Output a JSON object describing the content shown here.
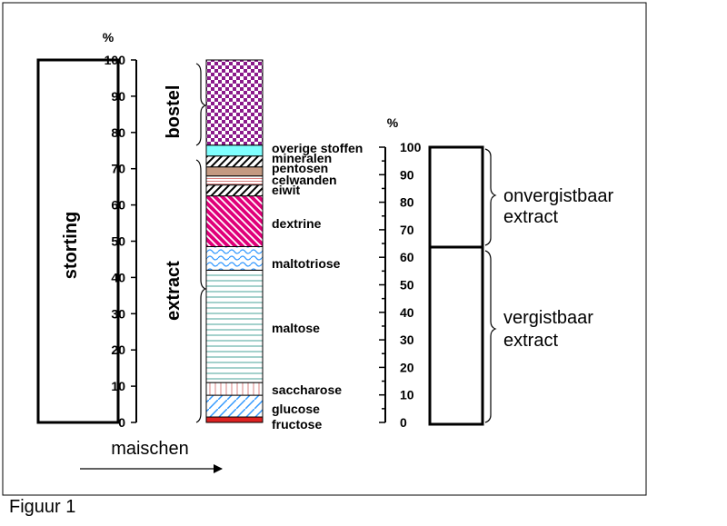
{
  "caption": "Figuur 1",
  "colors": {
    "bostel": "#8b1a8b",
    "overige_stoffen": "#7fffff",
    "pentosen": "#c49a82",
    "celwanden": "#e8d8d0",
    "dextrine": "#e0007a",
    "maltotriose": "#3399ff",
    "maltose": "#4aa39a",
    "saccharose": "#d9a0a0",
    "glucose": "#3399ff",
    "fructose": "#dd2222",
    "axis": "#000000"
  },
  "left_column": {
    "label": "storting"
  },
  "middle_axis": {
    "unit": "%",
    "ticks": [
      "0",
      "10",
      "20",
      "30",
      "40",
      "50",
      "60",
      "70",
      "80",
      "90",
      "100"
    ],
    "brace_labels": {
      "top": "bostel",
      "bottom": "extract"
    }
  },
  "maischen": {
    "label": "maischen"
  },
  "chart_data": {
    "type": "stacked-bar",
    "unit": "%",
    "ylim": [
      0,
      100
    ],
    "segments": [
      {
        "name": "fructose",
        "from": 0,
        "to": 1.5,
        "pattern": "solid-red"
      },
      {
        "name": "glucose",
        "from": 1.5,
        "to": 7.5,
        "pattern": "diagonal-blue"
      },
      {
        "name": "saccharose",
        "from": 7.5,
        "to": 11,
        "pattern": "vertical-pink"
      },
      {
        "name": "maltose",
        "from": 11,
        "to": 42,
        "pattern": "horizontal-teal"
      },
      {
        "name": "maltotriose",
        "from": 42,
        "to": 48.5,
        "pattern": "waves-blue"
      },
      {
        "name": "dextrine",
        "from": 48.5,
        "to": 62.5,
        "pattern": "diagonal-magenta"
      },
      {
        "name": "eiwit",
        "from": 62.5,
        "to": 65.5,
        "pattern": "diagonal-black"
      },
      {
        "name": "celwanden",
        "from": 65.5,
        "to": 68,
        "pattern": "horizontal-pink"
      },
      {
        "name": "pentosen",
        "from": 68,
        "to": 70.5,
        "pattern": "solid-brown"
      },
      {
        "name": "mineralen",
        "from": 70.5,
        "to": 73.5,
        "pattern": "diagonal-black"
      },
      {
        "name": "overige stoffen",
        "from": 73.5,
        "to": 76.5,
        "pattern": "solid-cyan"
      },
      {
        "name": "bostel",
        "from": 76.5,
        "to": 100,
        "pattern": "checker-purple"
      }
    ]
  },
  "right_axis": {
    "unit": "%",
    "ticks": [
      "0",
      "10",
      "20",
      "30",
      "40",
      "50",
      "60",
      "70",
      "80",
      "90",
      "100"
    ]
  },
  "right_column": {
    "upper_label": [
      "onvergistbaar",
      "extract"
    ],
    "lower_label": [
      "vergistbaar",
      "extract"
    ],
    "split_percent": 65
  }
}
